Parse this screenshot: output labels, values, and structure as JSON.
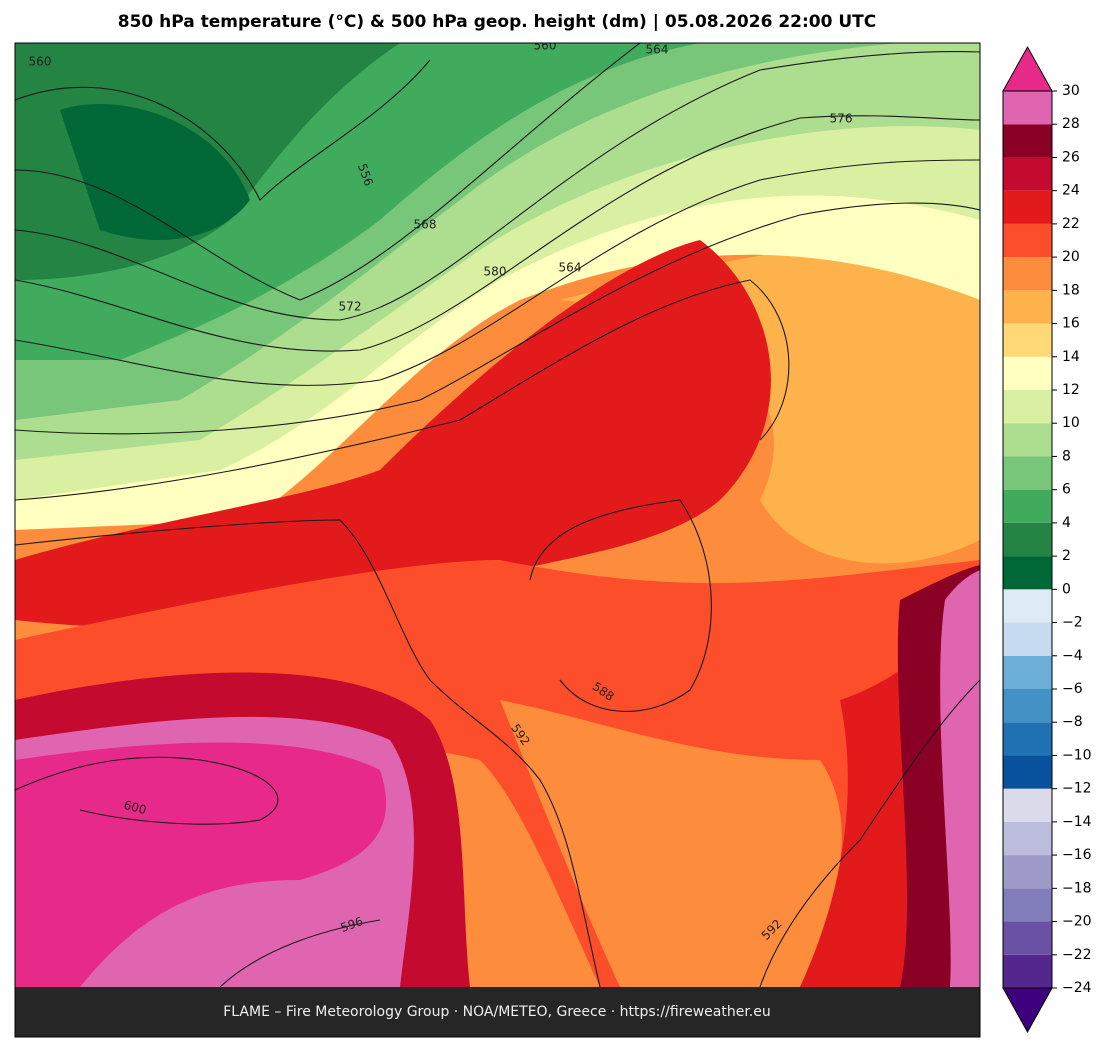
{
  "title": "850 hPa temperature (°C) & 500 hPa geop. height (dm)  |  05.08.2026 22:00 UTC",
  "footer": "FLAME – Fire Meteorology Group · NOA/METEO, Greece · https://fireweather.eu",
  "colorbar": {
    "ticks": [
      {
        "value": -24,
        "label": "−24"
      },
      {
        "value": -22,
        "label": "−22"
      },
      {
        "value": -20,
        "label": "−20"
      },
      {
        "value": -18,
        "label": "−18"
      },
      {
        "value": -16,
        "label": "−16"
      },
      {
        "value": -14,
        "label": "−14"
      },
      {
        "value": -12,
        "label": "−12"
      },
      {
        "value": -10,
        "label": "−10"
      },
      {
        "value": -8,
        "label": "−8"
      },
      {
        "value": -6,
        "label": "−6"
      },
      {
        "value": -4,
        "label": "−4"
      },
      {
        "value": -2,
        "label": "−2"
      },
      0,
      2,
      4,
      6,
      8,
      10,
      12,
      14,
      16,
      18,
      20,
      22,
      24,
      26,
      28,
      30
    ],
    "colors": [
      "#54278f",
      "#6a51a3",
      "#807dba",
      "#9e9ac8",
      "#bcbddc",
      "#dadaeb",
      "#08519c",
      "#2171b5",
      "#4292c6",
      "#6baed6",
      "#c6dbef",
      "#deebf7",
      "#006837",
      "#238443",
      "#41ab5d",
      "#78c679",
      "#addd8e",
      "#d9f0a3",
      "#ffffbf",
      "#fed976",
      "#feb24c",
      "#fd8d3c",
      "#fc4e2a",
      "#e31a1c",
      "#c40a2e",
      "#8b0025",
      "#df65b0"
    ],
    "extend_colors": [
      "#3f007d",
      "#e7298a"
    ]
  },
  "contour_labels": [
    "560",
    "560",
    "564",
    "556",
    "568",
    "572",
    "576",
    "580",
    "564",
    "588",
    "592",
    "600",
    "596",
    "592"
  ]
}
